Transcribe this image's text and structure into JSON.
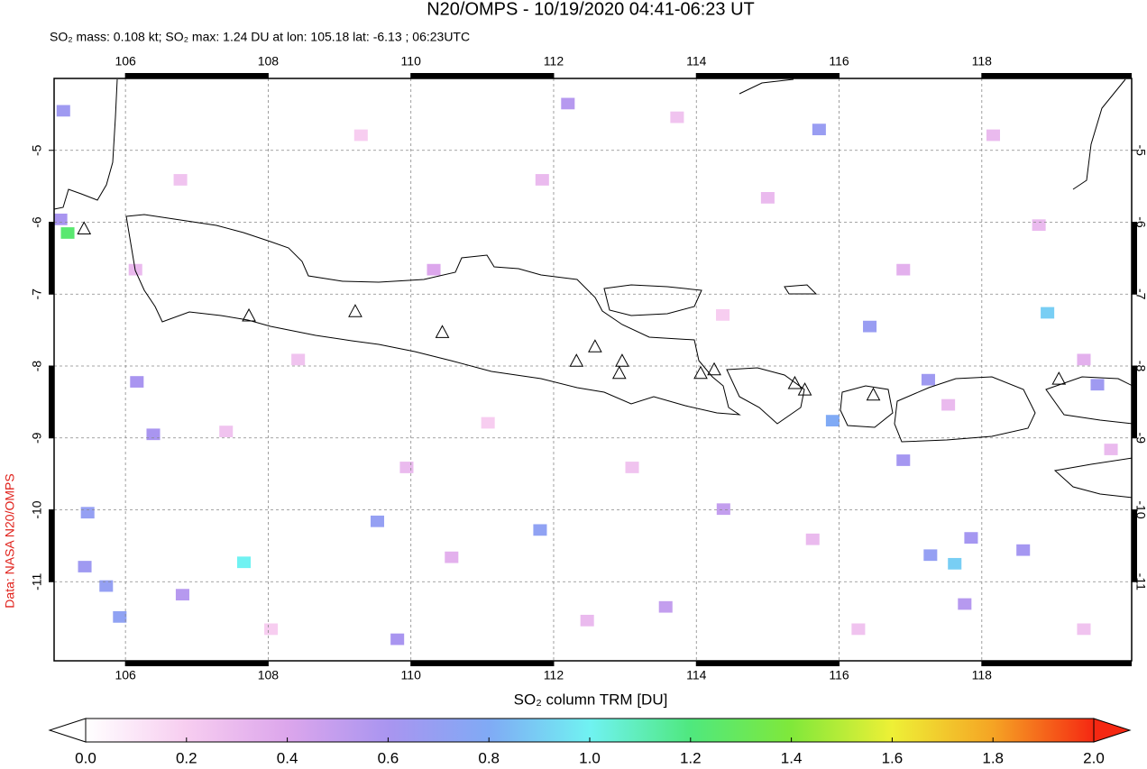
{
  "chart_data": {
    "type": "map",
    "title": "N20/OMPS - 10/19/2020 04:41-06:23 UT",
    "subtitle": "SO₂ mass: 0.108 kt; SO₂ max: 1.24 DU at lon: 105.18 lat: -6.13 ; 06:23UTC",
    "credit": "Data: NASA N20/OMPS",
    "colorbar_label": "SO₂ column TRM [DU]",
    "xlim": [
      105.0,
      120.1
    ],
    "ylim": [
      -12.1,
      -4.0
    ],
    "xticks": [
      106,
      108,
      110,
      112,
      114,
      116,
      118
    ],
    "yticks": [
      -5,
      -6,
      -7,
      -8,
      -9,
      -10,
      -11
    ],
    "grid": true,
    "clim": [
      0,
      2
    ],
    "colormap": [
      "#ffffff",
      "#f7cdf0",
      "#dca6ec",
      "#a995f0",
      "#80aaf5",
      "#70f2f2",
      "#4fe87e",
      "#80e83a",
      "#eef036",
      "#f5a424",
      "#f52812"
    ],
    "cbticks": [
      {
        "value": 0.0,
        "label": "0.0"
      },
      {
        "value": 0.2,
        "label": "0.2"
      },
      {
        "value": 0.4,
        "label": "0.4"
      },
      {
        "value": 0.6,
        "label": "0.6"
      },
      {
        "value": 0.8,
        "label": "0.8"
      },
      {
        "value": 1.0,
        "label": "1.0"
      },
      {
        "value": 1.2,
        "label": "1.2"
      },
      {
        "value": 1.4,
        "label": "1.4"
      },
      {
        "value": 1.6,
        "label": "1.6"
      },
      {
        "value": 1.8,
        "label": "1.8"
      },
      {
        "value": 2.0,
        "label": "2.0"
      }
    ],
    "pixels": {
      "lon": [
        105.19,
        105.13,
        105.09,
        106.16,
        105.47,
        107.66,
        105.43,
        105.73,
        105.92,
        109.53,
        111.81,
        112.2,
        115.72,
        116.43,
        118.92,
        117.25,
        119.62,
        115.91,
        116.9,
        117.85,
        117.28,
        117.62,
        118.58,
        117.76,
        114.38,
        113.57,
        109.81,
        106.8,
        106.39,
        110.32,
        108.42,
        111.08,
        113.1,
        115.0,
        116.9,
        118.8,
        118.16,
        106.77,
        109.3,
        111.84,
        113.73,
        115.63,
        119.43,
        108.04,
        110.57,
        112.47,
        117.53,
        119.81,
        106.14,
        107.41,
        114.37,
        119.43,
        116.27,
        109.94
      ],
      "lat": [
        -6.15,
        -4.45,
        -5.96,
        -8.22,
        -10.04,
        -10.73,
        -10.79,
        -11.06,
        -11.49,
        -10.16,
        -10.28,
        -4.35,
        -4.71,
        -7.45,
        -7.26,
        -8.19,
        -8.26,
        -8.76,
        -9.31,
        -10.39,
        -10.63,
        -10.75,
        -10.56,
        -11.31,
        -9.99,
        -11.35,
        -11.8,
        -11.18,
        -8.95,
        -6.66,
        -7.91,
        -8.79,
        -9.41,
        -5.66,
        -6.66,
        -6.04,
        -4.79,
        -5.41,
        -4.79,
        -5.41,
        -4.54,
        -10.41,
        -11.66,
        -11.66,
        -10.66,
        -11.54,
        -8.54,
        -9.16,
        -6.66,
        -8.91,
        -7.29,
        -7.91,
        -11.66,
        -9.41
      ],
      "values": [
        1.24,
        0.65,
        0.6,
        0.6,
        0.7,
        1.0,
        0.65,
        0.7,
        0.72,
        0.7,
        0.72,
        0.55,
        0.68,
        0.68,
        0.9,
        0.65,
        0.65,
        0.8,
        0.62,
        0.62,
        0.7,
        0.9,
        0.62,
        0.55,
        0.5,
        0.5,
        0.6,
        0.55,
        0.6,
        0.4,
        0.25,
        0.2,
        0.25,
        0.3,
        0.35,
        0.3,
        0.3,
        0.25,
        0.2,
        0.3,
        0.25,
        0.3,
        0.25,
        0.2,
        0.35,
        0.3,
        0.3,
        0.3,
        0.3,
        0.25,
        0.2,
        0.35,
        0.25,
        0.3
      ]
    },
    "volcanoes": {
      "lon": [
        105.42,
        107.73,
        109.22,
        110.44,
        112.32,
        112.58,
        112.96,
        112.92,
        114.06,
        114.25,
        115.38,
        115.52,
        116.48,
        119.08
      ],
      "lat": [
        -6.1,
        -7.31,
        -7.25,
        -7.54,
        -7.94,
        -7.74,
        -7.94,
        -8.11,
        -8.11,
        -8.06,
        -8.25,
        -8.34,
        -8.41,
        -8.19
      ]
    }
  }
}
